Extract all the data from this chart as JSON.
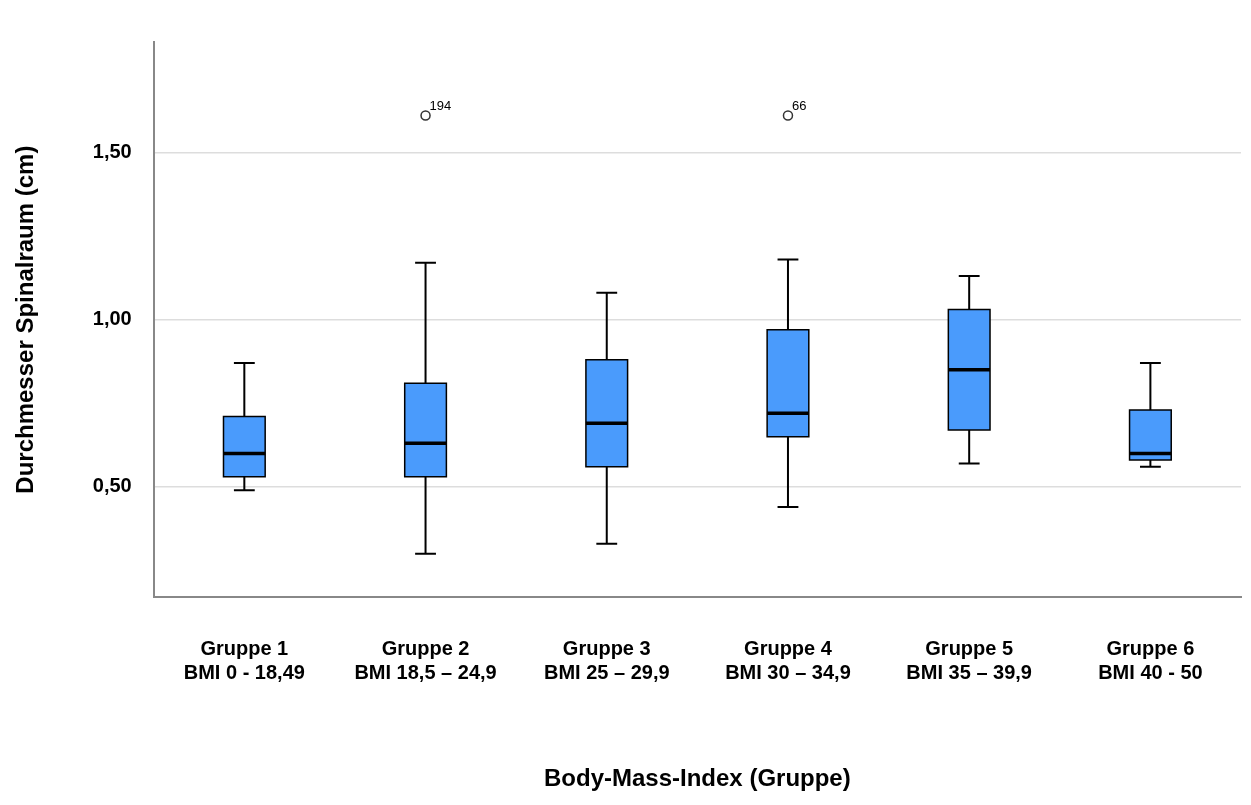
{
  "chart_data": {
    "type": "box",
    "xlabel": "Body-Mass-Index (Gruppe)",
    "ylabel": "Durchmesser Spinalraum (cm)",
    "categories": [
      "Gruppe 1\nBMI 0 - 18,49",
      "Gruppe 2\nBMI 18,5 – 24,9",
      "Gruppe 3\nBMI 25 – 29,9",
      "Gruppe 4\nBMI 30 – 34,9",
      "Gruppe 5\nBMI 35 – 39,9",
      "Gruppe 6\nBMI 40 - 50"
    ],
    "color": "#4a9bfc",
    "boxes": [
      {
        "low": 0.49,
        "q1": 0.53,
        "median": 0.6,
        "q3": 0.71,
        "high": 0.87
      },
      {
        "low": 0.3,
        "q1": 0.53,
        "median": 0.63,
        "q3": 0.81,
        "high": 1.17,
        "outliers": [
          1.61
        ]
      },
      {
        "low": 0.33,
        "q1": 0.56,
        "median": 0.69,
        "q3": 0.88,
        "high": 1.08
      },
      {
        "low": 0.44,
        "q1": 0.65,
        "median": 0.72,
        "q3": 0.97,
        "high": 1.18,
        "outliers": [
          1.61
        ]
      },
      {
        "low": 0.57,
        "q1": 0.67,
        "median": 0.85,
        "q3": 1.03,
        "high": 1.13
      },
      {
        "low": 0.56,
        "q1": 0.58,
        "median": 0.6,
        "q3": 0.73,
        "high": 0.87
      }
    ],
    "ylim": [
      0.17,
      1.83
    ],
    "yticks": [
      {
        "value": 0.5,
        "label": "0,50"
      },
      {
        "value": 1.0,
        "label": "1,00"
      },
      {
        "value": 1.5,
        "label": "1,50"
      }
    ],
    "grid": "y",
    "annotations": [
      "194",
      "66"
    ]
  }
}
